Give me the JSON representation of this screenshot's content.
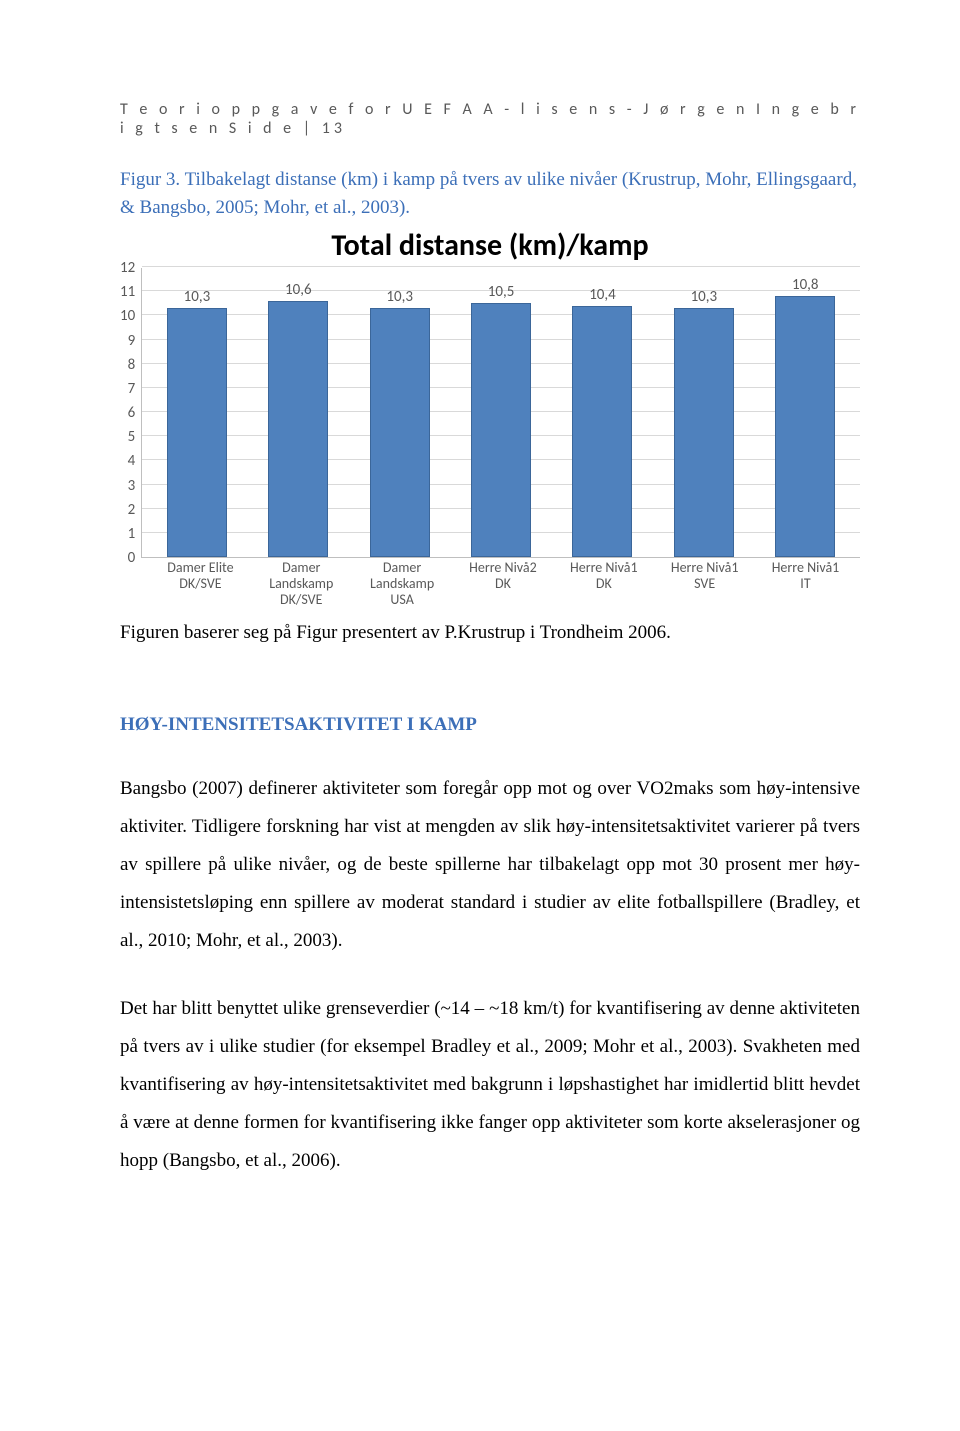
{
  "header": "T e o r i o p p g a v e   f o r   U E F A   A - l i s e n s - J ø r g e n   I n g e b r i g t s e n   S i d e  | 13",
  "caption": "Figur 3. Tilbakelagt distanse (km) i kamp på tvers av ulike nivåer (Krustrup, Mohr, Ellingsgaard, & Bangsbo, 2005; Mohr, et al., 2003).",
  "chart": {
    "title": "Total distanse (km)/kamp",
    "type": "bar",
    "y_max": 12,
    "y_ticks": [
      0,
      1,
      2,
      3,
      4,
      5,
      6,
      7,
      8,
      9,
      10,
      11,
      12
    ],
    "bar_color": "#4f81bd",
    "bar_border_color": "#3b6699",
    "gridline_color": "#d9d9d9",
    "axis_color": "#bfbfbf",
    "label_color": "#595959",
    "x_categories": [
      "Damer Elite DK/SVE",
      "Damer Landskamp DK/SVE",
      "Damer Landskamp USA",
      "Herre Nivå2 DK",
      "Herre Nivå1 DK",
      "Herre Nivå1 SVE",
      "Herre Nivå1 IT"
    ],
    "values": [
      10.3,
      10.6,
      10.3,
      10.5,
      10.4,
      10.3,
      10.8
    ],
    "value_labels": [
      "10,3",
      "10,6",
      "10,3",
      "10,5",
      "10,4",
      "10,3",
      "10,8"
    ]
  },
  "source_line": "Figuren baserer seg på Figur presentert av P.Krustrup i Trondheim 2006.",
  "section_heading": "HØY-INTENSITETSAKTIVITET I KAMP",
  "para1": "Bangsbo (2007) definerer aktiviteter som foregår opp mot og over VO2maks som høy-intensive aktiviter. Tidligere forskning har vist at mengden av slik høy-intensitetsaktivitet varierer på tvers av spillere på ulike nivåer, og de beste spillerne har tilbakelagt opp mot 30 prosent mer høy-intensistetsløping enn spillere av moderat standard i studier av elite fotballspillere (Bradley, et al., 2010; Mohr, et al., 2003).",
  "para2": "Det har blitt benyttet ulike grenseverdier (~14 – ~18 km/t) for kvantifisering av denne aktiviteten på tvers av i ulike studier (for eksempel Bradley et al., 2009; Mohr et al., 2003). Svakheten med kvantifisering av høy-intensitetsaktivitet med bakgrunn i løpshastighet har imidlertid blitt hevdet å være at denne formen for kvantifisering ikke fanger opp aktiviteter som korte akselerasjoner og hopp (Bangsbo, et al., 2006)."
}
